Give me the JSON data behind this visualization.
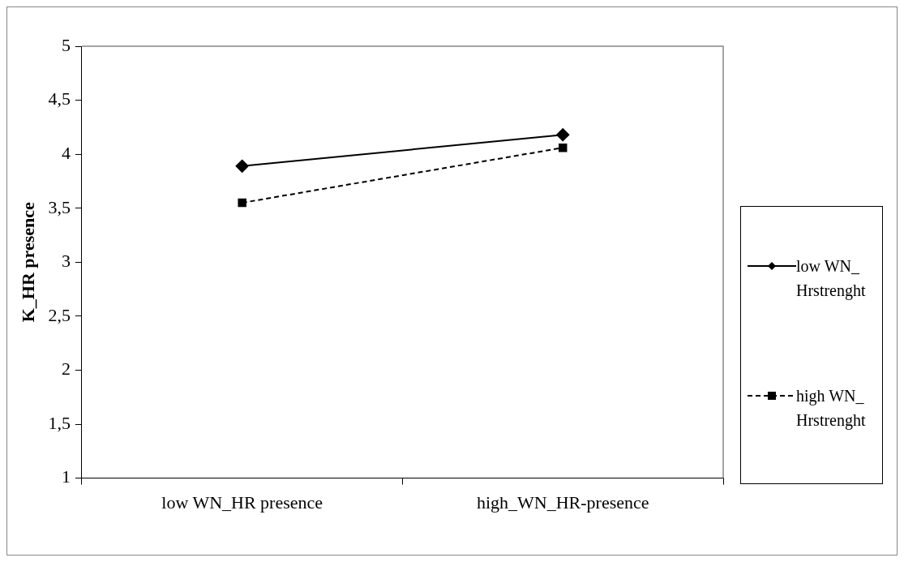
{
  "chart_data": {
    "type": "line",
    "ylabel": "K_HR presence",
    "categories": [
      "low WN_HR presence",
      "high_WN_HR-presence"
    ],
    "series": [
      {
        "name": "low WN_Hrstrenght",
        "color": "#000000",
        "values": [
          3.89,
          4.18
        ],
        "marker": "diamond",
        "line_style": "solid"
      },
      {
        "name": "high WN_Hrstrenght",
        "color": "#000000",
        "values": [
          3.55,
          4.06
        ],
        "marker": "square",
        "line_style": "dashed"
      }
    ],
    "ylim": [
      1,
      5
    ],
    "yticks": [
      1,
      {
        "value": 1.5,
        "label": "1,5"
      },
      2,
      {
        "value": 2.5,
        "label": "2,5"
      },
      3,
      {
        "value": 3.5,
        "label": "3,5"
      },
      4,
      {
        "value": 4.5,
        "label": "4,5"
      },
      5
    ],
    "grid": false,
    "legend": "right"
  }
}
